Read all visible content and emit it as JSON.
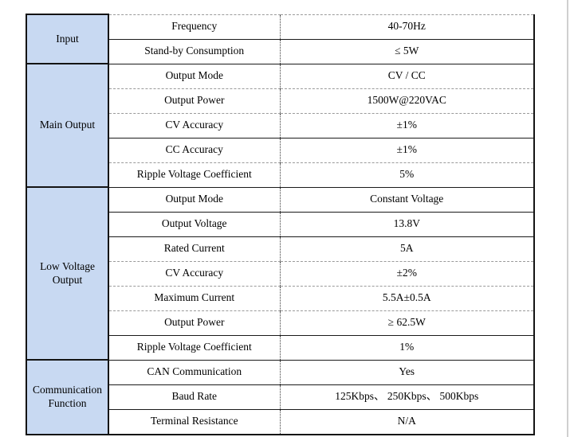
{
  "table": {
    "sections": [
      {
        "category": "Input",
        "rows": [
          {
            "param": "Frequency",
            "value": "40-70Hz"
          },
          {
            "param": "Stand-by Consumption",
            "value": "≤ 5W"
          }
        ]
      },
      {
        "category": "Main Output",
        "rows": [
          {
            "param": "Output Mode",
            "value": "CV / CC"
          },
          {
            "param": "Output Power",
            "value": "1500W@220VAC"
          },
          {
            "param": "CV Accuracy",
            "value": "±1%"
          },
          {
            "param": "CC Accuracy",
            "value": "±1%"
          },
          {
            "param": "Ripple Voltage Coefficient",
            "value": "5%"
          }
        ]
      },
      {
        "category": "Low Voltage Output",
        "rows": [
          {
            "param": "Output Mode",
            "value": "Constant Voltage"
          },
          {
            "param": "Output Voltage",
            "value": "13.8V"
          },
          {
            "param": "Rated Current",
            "value": "5A"
          },
          {
            "param": "CV Accuracy",
            "value": "±2%"
          },
          {
            "param": "Maximum Current",
            "value": "5.5A±0.5A"
          },
          {
            "param": "Output Power",
            "value": "≥ 62.5W"
          },
          {
            "param": "Ripple Voltage Coefficient",
            "value": "1%"
          }
        ]
      },
      {
        "category": "Communication Function",
        "rows": [
          {
            "param": "CAN Communication",
            "value": "Yes"
          },
          {
            "param": "Baud Rate",
            "value": "125Kbps、 250Kbps、 500Kbps"
          },
          {
            "param": "Terminal Resistance",
            "value": "N/A"
          }
        ]
      }
    ]
  },
  "colors": {
    "category_fill": "#c8d9f2",
    "border": "#141414"
  }
}
